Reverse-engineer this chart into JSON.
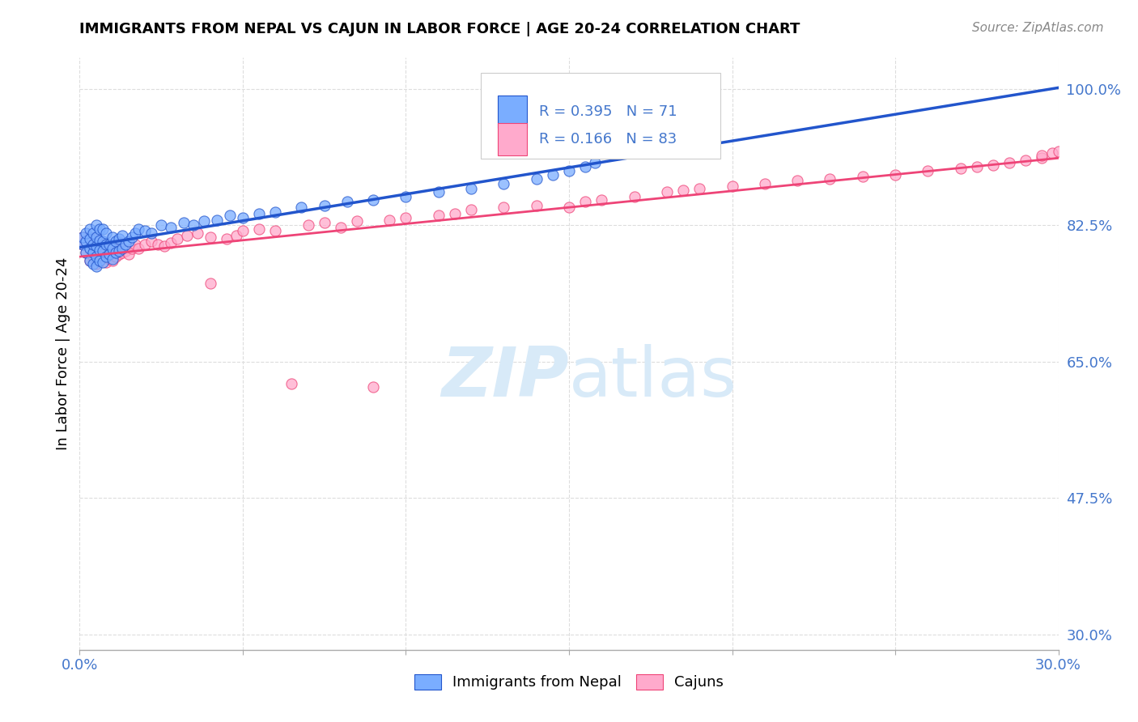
{
  "title": "IMMIGRANTS FROM NEPAL VS CAJUN IN LABOR FORCE | AGE 20-24 CORRELATION CHART",
  "source_text": "Source: ZipAtlas.com",
  "ylabel": "In Labor Force | Age 20-24",
  "xlim": [
    0.0,
    0.3
  ],
  "ylim": [
    0.28,
    1.04
  ],
  "xtick_positions": [
    0.0,
    0.05,
    0.1,
    0.15,
    0.2,
    0.25,
    0.3
  ],
  "xticklabels": [
    "0.0%",
    "",
    "",
    "",
    "",
    "",
    "30.0%"
  ],
  "ytick_positions": [
    0.3,
    0.475,
    0.65,
    0.825,
    1.0
  ],
  "yticklabels_right": [
    "30.0%",
    "47.5%",
    "65.0%",
    "82.5%",
    "100.0%"
  ],
  "R_nepal": 0.395,
  "N_nepal": 71,
  "R_cajun": 0.166,
  "N_cajun": 83,
  "color_nepal": "#7aadff",
  "color_cajun": "#ffaacc",
  "trendline_nepal_color": "#2255cc",
  "trendline_cajun_color": "#ee4477",
  "watermark_color": "#d8eaf8",
  "tick_color": "#4477cc",
  "grid_color": "#dddddd",
  "nepal_x": [
    0.001,
    0.001,
    0.002,
    0.002,
    0.002,
    0.003,
    0.003,
    0.003,
    0.003,
    0.004,
    0.004,
    0.004,
    0.004,
    0.005,
    0.005,
    0.005,
    0.005,
    0.005,
    0.006,
    0.006,
    0.006,
    0.006,
    0.007,
    0.007,
    0.007,
    0.007,
    0.008,
    0.008,
    0.008,
    0.009,
    0.009,
    0.01,
    0.01,
    0.01,
    0.011,
    0.011,
    0.012,
    0.012,
    0.013,
    0.013,
    0.014,
    0.015,
    0.016,
    0.017,
    0.018,
    0.02,
    0.022,
    0.025,
    0.028,
    0.032,
    0.035,
    0.038,
    0.042,
    0.046,
    0.05,
    0.055,
    0.06,
    0.068,
    0.075,
    0.082,
    0.09,
    0.1,
    0.11,
    0.12,
    0.13,
    0.14,
    0.145,
    0.15,
    0.155,
    0.158,
    0.16
  ],
  "nepal_y": [
    0.8,
    0.81,
    0.79,
    0.805,
    0.815,
    0.78,
    0.795,
    0.808,
    0.82,
    0.775,
    0.79,
    0.8,
    0.815,
    0.772,
    0.785,
    0.798,
    0.81,
    0.825,
    0.78,
    0.793,
    0.806,
    0.82,
    0.778,
    0.792,
    0.805,
    0.82,
    0.785,
    0.8,
    0.815,
    0.788,
    0.8,
    0.782,
    0.795,
    0.81,
    0.79,
    0.805,
    0.792,
    0.808,
    0.795,
    0.812,
    0.8,
    0.805,
    0.81,
    0.815,
    0.82,
    0.818,
    0.815,
    0.825,
    0.822,
    0.828,
    0.825,
    0.83,
    0.832,
    0.838,
    0.835,
    0.84,
    0.842,
    0.848,
    0.85,
    0.855,
    0.858,
    0.862,
    0.868,
    0.872,
    0.878,
    0.885,
    0.89,
    0.895,
    0.9,
    0.905,
    0.92
  ],
  "cajun_x": [
    0.001,
    0.001,
    0.002,
    0.002,
    0.003,
    0.003,
    0.003,
    0.004,
    0.004,
    0.005,
    0.005,
    0.005,
    0.006,
    0.006,
    0.007,
    0.007,
    0.008,
    0.008,
    0.009,
    0.009,
    0.01,
    0.01,
    0.011,
    0.011,
    0.012,
    0.012,
    0.013,
    0.014,
    0.015,
    0.016,
    0.017,
    0.018,
    0.02,
    0.022,
    0.024,
    0.026,
    0.028,
    0.03,
    0.033,
    0.036,
    0.04,
    0.04,
    0.045,
    0.048,
    0.05,
    0.055,
    0.06,
    0.065,
    0.07,
    0.075,
    0.08,
    0.085,
    0.09,
    0.095,
    0.1,
    0.11,
    0.115,
    0.12,
    0.13,
    0.14,
    0.15,
    0.155,
    0.16,
    0.17,
    0.18,
    0.185,
    0.19,
    0.2,
    0.21,
    0.22,
    0.23,
    0.24,
    0.25,
    0.26,
    0.27,
    0.275,
    0.28,
    0.285,
    0.29,
    0.295,
    0.295,
    0.298,
    0.3
  ],
  "cajun_y": [
    0.8,
    0.81,
    0.79,
    0.805,
    0.78,
    0.795,
    0.81,
    0.785,
    0.8,
    0.775,
    0.79,
    0.808,
    0.78,
    0.795,
    0.785,
    0.8,
    0.778,
    0.792,
    0.782,
    0.798,
    0.78,
    0.795,
    0.785,
    0.8,
    0.788,
    0.803,
    0.79,
    0.792,
    0.788,
    0.795,
    0.8,
    0.795,
    0.8,
    0.805,
    0.8,
    0.798,
    0.802,
    0.808,
    0.812,
    0.815,
    0.81,
    0.75,
    0.808,
    0.812,
    0.818,
    0.82,
    0.818,
    0.622,
    0.825,
    0.828,
    0.822,
    0.83,
    0.618,
    0.832,
    0.835,
    0.838,
    0.84,
    0.845,
    0.848,
    0.85,
    0.848,
    0.855,
    0.858,
    0.862,
    0.868,
    0.87,
    0.872,
    0.875,
    0.878,
    0.882,
    0.885,
    0.888,
    0.89,
    0.895,
    0.898,
    0.9,
    0.902,
    0.905,
    0.908,
    0.912,
    0.915,
    0.918,
    0.92
  ]
}
